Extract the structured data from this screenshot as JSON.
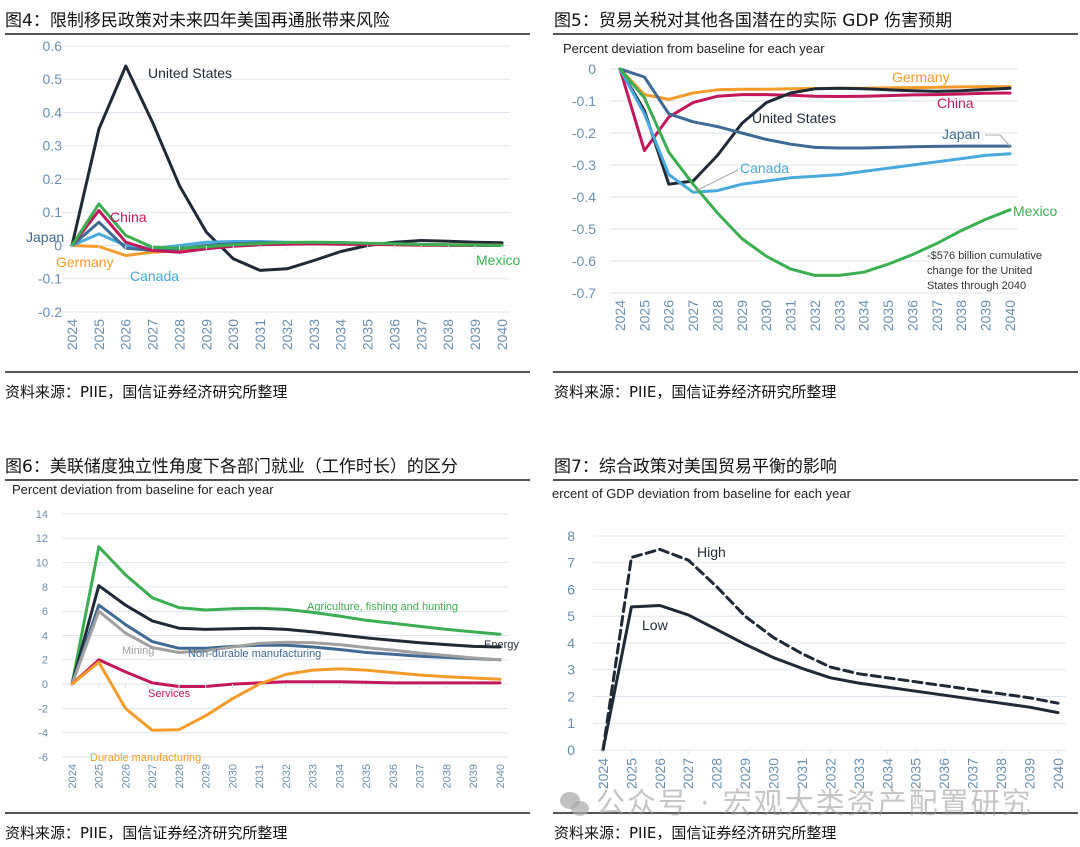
{
  "figures": {
    "fig4": {
      "title": "图4：限制移民政策对未来四年美国再通胀带来风险",
      "source": "资料来源：PIIE，国信证券经济研究所整理"
    },
    "fig5": {
      "title": "图5：贸易关税对其他各国潜在的实际 GDP 伤害预期",
      "source": "资料来源：PIIE，国信证券经济研究所整理"
    },
    "fig6": {
      "title": "图6：美联储度独立性角度下各部门就业（工作时长）的区分",
      "source": "资料来源：PIIE，国信证券经济研究所整理"
    },
    "fig7": {
      "title": "图7：综合政策对美国贸易平衡的影响",
      "source": "资料来源：PIIE，国信证券经济研究所整理"
    }
  },
  "watermark": "公众号 · 宏观大类资产配置研究",
  "chart_data": [
    {
      "id": "fig4",
      "type": "line",
      "title": "限制移民政策对未来四年美国再通胀带来风险",
      "ylabel": "",
      "xlabel": "",
      "ylim": [
        -0.2,
        0.6
      ],
      "yticks": [
        -0.2,
        -0.1,
        0,
        0.1,
        0.2,
        0.3,
        0.4,
        0.5,
        0.6
      ],
      "ytick_labels": [
        "-0.2",
        "-0.1",
        "0",
        "0.1",
        "0.2",
        "0.3",
        "0.4",
        "0.5",
        "0.6"
      ],
      "grid": true,
      "x": [
        "2024",
        "2025",
        "2026",
        "2027",
        "2028",
        "2029",
        "2030",
        "2031",
        "2032",
        "2033",
        "2034",
        "2035",
        "2036",
        "2037",
        "2038",
        "2039",
        "2040"
      ],
      "series": [
        {
          "name": "United States",
          "color": "#1f2a36",
          "values": [
            0,
            0.35,
            0.54,
            0.37,
            0.18,
            0.04,
            -0.04,
            -0.075,
            -0.07,
            -0.045,
            -0.018,
            0.0,
            0.01,
            0.015,
            0.013,
            0.01,
            0.008
          ]
        },
        {
          "name": "Germany",
          "color": "#f39c2b",
          "values": [
            0,
            -0.003,
            -0.03,
            -0.02,
            -0.015,
            -0.005,
            0.005,
            0.008,
            0.008,
            0.007,
            0.006,
            0.005,
            0.004,
            0.003,
            0.002,
            0.002,
            0.001
          ]
        },
        {
          "name": "Canada",
          "color": "#4aa9dc",
          "values": [
            0,
            0.035,
            0.0,
            -0.01,
            0.0,
            0.01,
            0.012,
            0.012,
            0.01,
            0.008,
            0.006,
            0.004,
            0.003,
            0.002,
            0.001,
            0.001,
            0.0
          ]
        },
        {
          "name": "Japan",
          "color": "#3e6a94",
          "values": [
            0,
            0.07,
            -0.008,
            -0.015,
            -0.01,
            0.0,
            0.005,
            0.008,
            0.008,
            0.007,
            0.005,
            0.004,
            0.003,
            0.002,
            0.001,
            0.001,
            0.0
          ]
        },
        {
          "name": "China",
          "color": "#c2185b",
          "values": [
            0,
            0.105,
            0.01,
            -0.015,
            -0.02,
            -0.01,
            -0.002,
            0.002,
            0.004,
            0.005,
            0.004,
            0.003,
            0.002,
            0.001,
            0.001,
            0.0,
            0.0
          ]
        },
        {
          "name": "Mexico",
          "color": "#3cae52",
          "values": [
            0,
            0.125,
            0.03,
            -0.005,
            -0.008,
            -0.004,
            0.002,
            0.006,
            0.009,
            0.01,
            0.009,
            0.007,
            0.005,
            0.003,
            0.002,
            0.001,
            0.0
          ]
        }
      ],
      "labels": [
        {
          "text": "United States",
          "series": "United States"
        },
        {
          "text": "China",
          "series": "China"
        },
        {
          "text": "Japan",
          "series": "Japan"
        },
        {
          "text": "Germany",
          "series": "Germany"
        },
        {
          "text": "Canada",
          "series": "Canada"
        },
        {
          "text": "Mexico",
          "series": "Mexico"
        }
      ]
    },
    {
      "id": "fig5",
      "type": "line",
      "title": "贸易关税对其他各国潜在的实际 GDP 伤害预期",
      "unit_label": "Percent deviation from baseline for each year",
      "ylim": [
        -0.7,
        0
      ],
      "yticks": [
        -0.7,
        -0.6,
        -0.5,
        -0.4,
        -0.3,
        -0.2,
        -0.1,
        0
      ],
      "ytick_labels": [
        "-0.7",
        "-0.6",
        "-0.5",
        "-0.4",
        "-0.3",
        "-0.2",
        "-0.1",
        "0"
      ],
      "grid": true,
      "x": [
        "2024",
        "2025",
        "2026",
        "2027",
        "2028",
        "2029",
        "2030",
        "2031",
        "2032",
        "2033",
        "2034",
        "2035",
        "2036",
        "2037",
        "2038",
        "2039",
        "2040"
      ],
      "series": [
        {
          "name": "Germany",
          "color": "#f39c2b",
          "values": [
            0,
            -0.08,
            -0.095,
            -0.075,
            -0.065,
            -0.063,
            -0.063,
            -0.062,
            -0.061,
            -0.06,
            -0.06,
            -0.059,
            -0.058,
            -0.057,
            -0.056,
            -0.055,
            -0.055
          ]
        },
        {
          "name": "China",
          "color": "#c2185b",
          "values": [
            0,
            -0.255,
            -0.15,
            -0.105,
            -0.085,
            -0.08,
            -0.08,
            -0.082,
            -0.085,
            -0.086,
            -0.085,
            -0.083,
            -0.081,
            -0.08,
            -0.078,
            -0.076,
            -0.075
          ]
        },
        {
          "name": "United States",
          "color": "#1f2a36",
          "values": [
            0,
            -0.13,
            -0.36,
            -0.35,
            -0.27,
            -0.17,
            -0.105,
            -0.075,
            -0.062,
            -0.06,
            -0.062,
            -0.065,
            -0.068,
            -0.07,
            -0.068,
            -0.064,
            -0.06
          ]
        },
        {
          "name": "Japan",
          "color": "#3e6a94",
          "values": [
            0,
            -0.025,
            -0.14,
            -0.165,
            -0.18,
            -0.2,
            -0.22,
            -0.235,
            -0.245,
            -0.247,
            -0.247,
            -0.245,
            -0.243,
            -0.242,
            -0.241,
            -0.241,
            -0.241
          ]
        },
        {
          "name": "Canada",
          "color": "#4aa9dc",
          "values": [
            0,
            -0.14,
            -0.33,
            -0.385,
            -0.38,
            -0.36,
            -0.35,
            -0.34,
            -0.335,
            -0.33,
            -0.32,
            -0.31,
            -0.3,
            -0.29,
            -0.28,
            -0.27,
            -0.265
          ]
        },
        {
          "name": "Mexico",
          "color": "#3cae52",
          "values": [
            0,
            -0.09,
            -0.26,
            -0.36,
            -0.45,
            -0.53,
            -0.585,
            -0.625,
            -0.645,
            -0.645,
            -0.635,
            -0.61,
            -0.58,
            -0.545,
            -0.505,
            -0.47,
            -0.44
          ]
        }
      ],
      "annotation": "-$576 billion cumulative change for the United States through 2040",
      "annotation_lines": [
        "-$576 billion cumulative",
        "change for the United",
        "States through 2040"
      ],
      "labels": [
        {
          "text": "Germany",
          "series": "Germany"
        },
        {
          "text": "China",
          "series": "China"
        },
        {
          "text": "United States",
          "series": "United States"
        },
        {
          "text": "Japan",
          "series": "Japan"
        },
        {
          "text": "Canada",
          "series": "Canada"
        },
        {
          "text": "Mexico",
          "series": "Mexico"
        }
      ]
    },
    {
      "id": "fig6",
      "type": "line",
      "title": "美联储度独立性角度下各部门就业（工作时长）的区分",
      "unit_label": "Percent deviation from baseline for each year",
      "ylim": [
        -6,
        14
      ],
      "yticks": [
        -6,
        -4,
        -2,
        0,
        2,
        4,
        6,
        8,
        10,
        12,
        14
      ],
      "ytick_labels": [
        "-6",
        "-4",
        "-2",
        "0",
        "2",
        "4",
        "6",
        "8",
        "10",
        "12",
        "14"
      ],
      "grid": true,
      "x": [
        "2024",
        "2025",
        "2026",
        "2027",
        "2028",
        "2029",
        "2030",
        "2031",
        "2032",
        "2033",
        "2034",
        "2035",
        "2036",
        "2037",
        "2038",
        "2039",
        "2040"
      ],
      "series": [
        {
          "name": "Agriculture, fishing and hunting",
          "color": "#3cae52",
          "values": [
            0,
            11.3,
            9.0,
            7.1,
            6.3,
            6.1,
            6.2,
            6.25,
            6.15,
            5.9,
            5.6,
            5.25,
            5.0,
            4.75,
            4.5,
            4.3,
            4.1
          ]
        },
        {
          "name": "Energy",
          "color": "#1f2a36",
          "values": [
            0,
            8.1,
            6.5,
            5.2,
            4.6,
            4.5,
            4.55,
            4.6,
            4.5,
            4.3,
            4.05,
            3.8,
            3.6,
            3.4,
            3.25,
            3.1,
            3.05
          ]
        },
        {
          "name": "Non-durable manufacturing",
          "color": "#3e6a94",
          "values": [
            0,
            6.5,
            4.9,
            3.5,
            2.95,
            2.95,
            3.1,
            3.2,
            3.2,
            3.05,
            2.85,
            2.6,
            2.45,
            2.3,
            2.2,
            2.1,
            2.0
          ]
        },
        {
          "name": "Mining",
          "color": "#a0a0a0",
          "values": [
            0,
            6.0,
            4.2,
            3.0,
            2.6,
            2.75,
            3.05,
            3.35,
            3.45,
            3.4,
            3.25,
            3.0,
            2.8,
            2.55,
            2.35,
            2.15,
            2.0
          ]
        },
        {
          "name": "Services",
          "color": "#c2185b",
          "values": [
            0,
            2.0,
            1.0,
            0.1,
            -0.2,
            -0.2,
            0.0,
            0.1,
            0.2,
            0.2,
            0.2,
            0.15,
            0.1,
            0.1,
            0.1,
            0.1,
            0.1
          ]
        },
        {
          "name": "Durable manufacturing",
          "color": "#f39c2b",
          "values": [
            0,
            1.8,
            -2.0,
            -3.8,
            -3.75,
            -2.6,
            -1.2,
            0.0,
            0.8,
            1.15,
            1.25,
            1.15,
            0.95,
            0.75,
            0.6,
            0.5,
            0.4
          ]
        }
      ],
      "labels": [
        {
          "text": "Agriculture, fishing and hunting",
          "series": "Agriculture, fishing and hunting"
        },
        {
          "text": "Energy",
          "series": "Energy"
        },
        {
          "text": "Mining",
          "series": "Mining"
        },
        {
          "text": "Non-durable manufacturing",
          "series": "Non-durable manufacturing"
        },
        {
          "text": "Services",
          "series": "Services"
        },
        {
          "text": "Durable manufacturing",
          "series": "Durable manufacturing"
        }
      ]
    },
    {
      "id": "fig7",
      "type": "line",
      "title": "综合政策对美国贸易平衡的影响",
      "unit_label": "ercent of GDP deviation from baseline for each year",
      "ylim": [
        0,
        8
      ],
      "yticks": [
        0,
        1,
        2,
        3,
        4,
        5,
        6,
        7,
        8
      ],
      "ytick_labels": [
        "0",
        "1",
        "2",
        "3",
        "4",
        "5",
        "6",
        "7",
        "8"
      ],
      "grid": true,
      "x": [
        "2024",
        "2025",
        "2026",
        "2027",
        "2028",
        "2029",
        "2030",
        "2031",
        "2032",
        "2033",
        "2034",
        "2035",
        "2036",
        "2037",
        "2038",
        "2039",
        "2040"
      ],
      "series": [
        {
          "name": "High",
          "color": "#1f2a36",
          "dashed": true,
          "values": [
            0,
            7.2,
            7.5,
            7.1,
            6.1,
            5.0,
            4.2,
            3.6,
            3.1,
            2.85,
            2.7,
            2.55,
            2.4,
            2.25,
            2.1,
            1.95,
            1.75
          ]
        },
        {
          "name": "Low",
          "color": "#1f2a36",
          "dashed": false,
          "values": [
            0,
            5.35,
            5.4,
            5.05,
            4.5,
            3.95,
            3.45,
            3.05,
            2.7,
            2.5,
            2.35,
            2.2,
            2.05,
            1.9,
            1.75,
            1.6,
            1.4
          ]
        }
      ],
      "labels": [
        {
          "text": "High",
          "series": "High"
        },
        {
          "text": "Low",
          "series": "Low"
        }
      ]
    }
  ]
}
